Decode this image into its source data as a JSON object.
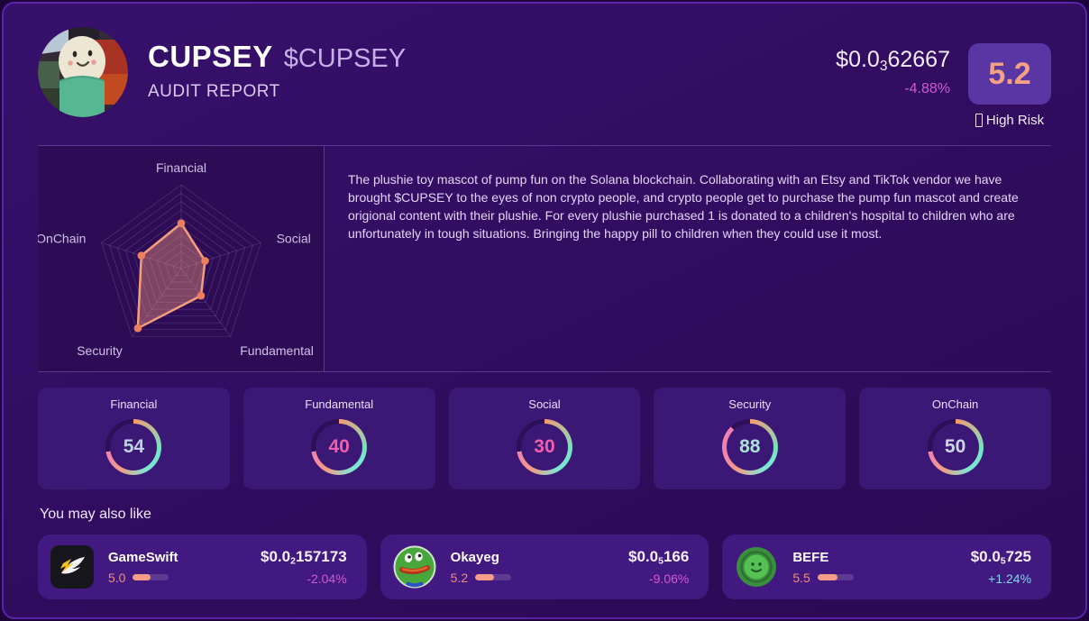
{
  "header": {
    "name": "CUPSEY",
    "ticker": "$CUPSEY",
    "report_label": "AUDIT REPORT",
    "price": {
      "prefix": "$0.0",
      "subscript": "3",
      "digits": "62667"
    },
    "change": "-4.88%",
    "score": "5.2",
    "risk_icon": "missing-glyph-box",
    "risk_label": "High Risk",
    "avatar": "cupsey-plushie-photo"
  },
  "about": "The plushie toy mascot of pump fun on the Solana blockchain. Collaborating with an Etsy and TikTok vendor we have brought $CUPSEY to the eyes of non crypto people, and crypto people get to purchase the pump fun mascot and create origional content with their plushie. For every plushie purchased 1 is donated to a children's hospital to children who are unfortunately in tough situations. Bringing the happy pill to children when they could use it most.",
  "chart_data": {
    "type": "radar",
    "categories": [
      "Financial",
      "Social",
      "Fundamental",
      "Security",
      "OnChain"
    ],
    "values": [
      54,
      30,
      40,
      88,
      50
    ],
    "max": 100,
    "rings": 10,
    "stroke_color": "#f59e7c",
    "fill_color": "rgba(243,150,122,0.42)",
    "dot_color": "#ed7f5f",
    "grid_color": "rgba(205,185,235,0.22)",
    "label_color": "#cfc0e8"
  },
  "metrics": [
    {
      "label": "Financial",
      "value": 54,
      "value_color": "#bcd2e0"
    },
    {
      "label": "Fundamental",
      "value": 40,
      "value_color": "#ef5fae"
    },
    {
      "label": "Social",
      "value": 30,
      "value_color": "#ef5fae"
    },
    {
      "label": "Security",
      "value": 88,
      "value_color": "#a9e3d2"
    },
    {
      "label": "OnChain",
      "value": 50,
      "value_color": "#ccd7e6"
    }
  ],
  "related": {
    "heading": "You may also like",
    "tokens": [
      {
        "name": "GameSwift",
        "icon": "gameswift-logo",
        "score": "5.0",
        "score_pct": 50,
        "price": {
          "prefix": "$0.0",
          "subscript": "2",
          "digits": "157173"
        },
        "change": "-2.04%",
        "direction": "down"
      },
      {
        "name": "Okayeg",
        "icon": "okayeg-logo",
        "score": "5.2",
        "score_pct": 52,
        "price": {
          "prefix": "$0.0",
          "subscript": "5",
          "digits": "166"
        },
        "change": "-9.06%",
        "direction": "down"
      },
      {
        "name": "BEFE",
        "icon": "befe-logo",
        "score": "5.5",
        "score_pct": 55,
        "price": {
          "prefix": "$0.0",
          "subscript": "5",
          "digits": "725"
        },
        "change": "+1.24%",
        "direction": "up"
      }
    ]
  },
  "colors": {
    "negative": "#cf5bd2",
    "positive": "#7fd9e8",
    "accent_salmon": "#f5a184",
    "ring_track": "rgba(15,4,40,0.38)",
    "ring_gradient_stops": [
      "#f59c70",
      "#74e4c6",
      "#7de8d4",
      "#f59c86",
      "#f07fb2"
    ]
  }
}
